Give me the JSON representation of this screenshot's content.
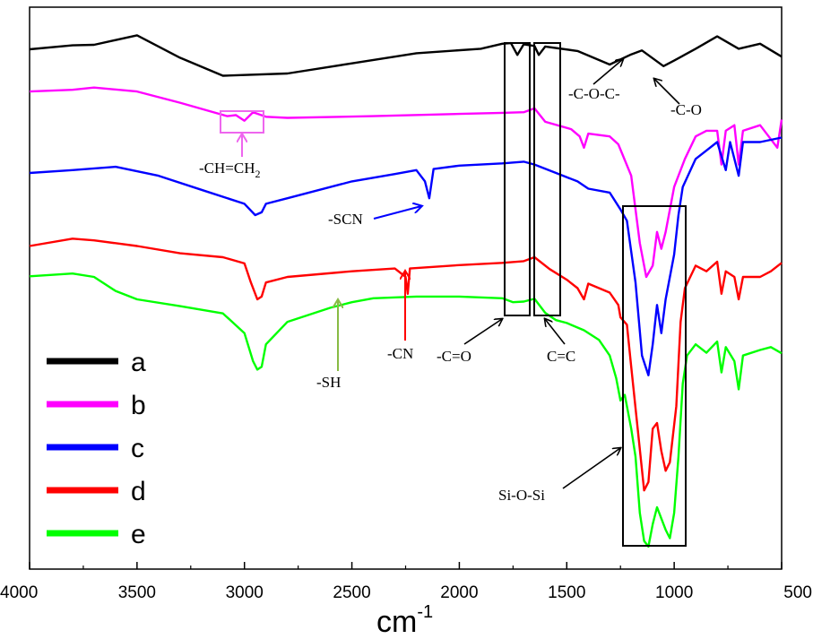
{
  "chart_data": {
    "type": "line",
    "title": "",
    "xlabel": "cm",
    "xlabel_superscript": "-1",
    "ylabel": "",
    "xlim": [
      4000,
      500
    ],
    "x_ticks": [
      "4000",
      "3500",
      "3000",
      "2500",
      "2000",
      "1500",
      "1000",
      "500"
    ],
    "x_tick_values": [
      4000,
      3500,
      3000,
      2500,
      2000,
      1500,
      1000,
      500
    ],
    "ylim": [
      0,
      100
    ],
    "series": [
      {
        "name": "a",
        "color": "#000000",
        "points": [
          [
            4000,
            92.5
          ],
          [
            3800,
            93.2
          ],
          [
            3700,
            93.3
          ],
          [
            3500,
            95
          ],
          [
            3300,
            91
          ],
          [
            3100,
            87.8
          ],
          [
            2800,
            88.2
          ],
          [
            2500,
            90
          ],
          [
            2200,
            91.8
          ],
          [
            1900,
            92.6
          ],
          [
            1800,
            93.5
          ],
          [
            1760,
            93.6
          ],
          [
            1730,
            91.5
          ],
          [
            1700,
            93.4
          ],
          [
            1650,
            93.1
          ],
          [
            1630,
            91.5
          ],
          [
            1600,
            93
          ],
          [
            1450,
            92.2
          ],
          [
            1300,
            89.8
          ],
          [
            1200,
            91.6
          ],
          [
            1150,
            92.3
          ],
          [
            1050,
            89.5
          ],
          [
            1000,
            90.5
          ],
          [
            900,
            92.6
          ],
          [
            800,
            94.8
          ],
          [
            700,
            92.6
          ],
          [
            600,
            93.5
          ],
          [
            500,
            91.2
          ]
        ]
      },
      {
        "name": "b",
        "color": "#ff00ff",
        "points": [
          [
            4000,
            85
          ],
          [
            3800,
            85.3
          ],
          [
            3700,
            85.7
          ],
          [
            3500,
            85
          ],
          [
            3300,
            83
          ],
          [
            3080,
            80.6
          ],
          [
            3040,
            80.8
          ],
          [
            3000,
            79.8
          ],
          [
            2960,
            81.3
          ],
          [
            2900,
            80.5
          ],
          [
            2800,
            80.3
          ],
          [
            2400,
            80.6
          ],
          [
            2000,
            81
          ],
          [
            1800,
            81.2
          ],
          [
            1700,
            81.3
          ],
          [
            1650,
            82
          ],
          [
            1600,
            79.6
          ],
          [
            1480,
            78.3
          ],
          [
            1440,
            77
          ],
          [
            1420,
            75
          ],
          [
            1400,
            77.5
          ],
          [
            1300,
            77
          ],
          [
            1260,
            75.6
          ],
          [
            1200,
            70
          ],
          [
            1160,
            58
          ],
          [
            1130,
            52
          ],
          [
            1100,
            54
          ],
          [
            1080,
            60
          ],
          [
            1060,
            57
          ],
          [
            1040,
            60
          ],
          [
            1000,
            68
          ],
          [
            950,
            73
          ],
          [
            900,
            77
          ],
          [
            850,
            78
          ],
          [
            800,
            78
          ],
          [
            780,
            72
          ],
          [
            760,
            78
          ],
          [
            720,
            79
          ],
          [
            700,
            72
          ],
          [
            680,
            78
          ],
          [
            600,
            79
          ],
          [
            520,
            75
          ],
          [
            500,
            80
          ]
        ]
      },
      {
        "name": "c",
        "color": "#0000ff",
        "points": [
          [
            4000,
            70.5
          ],
          [
            3800,
            71
          ],
          [
            3600,
            71.6
          ],
          [
            3400,
            70
          ],
          [
            3200,
            67.5
          ],
          [
            3000,
            65
          ],
          [
            2950,
            63
          ],
          [
            2920,
            63.5
          ],
          [
            2900,
            65
          ],
          [
            2800,
            66
          ],
          [
            2500,
            69
          ],
          [
            2300,
            70.3
          ],
          [
            2200,
            71
          ],
          [
            2160,
            69
          ],
          [
            2140,
            66
          ],
          [
            2120,
            71.2
          ],
          [
            2000,
            71.8
          ],
          [
            1800,
            72.2
          ],
          [
            1700,
            72.5
          ],
          [
            1650,
            72
          ],
          [
            1550,
            70.5
          ],
          [
            1450,
            69
          ],
          [
            1400,
            67.7
          ],
          [
            1300,
            67
          ],
          [
            1250,
            64
          ],
          [
            1220,
            62
          ],
          [
            1180,
            51
          ],
          [
            1150,
            38
          ],
          [
            1120,
            34.5
          ],
          [
            1100,
            40
          ],
          [
            1080,
            47
          ],
          [
            1060,
            42
          ],
          [
            1040,
            48
          ],
          [
            1000,
            56
          ],
          [
            980,
            63
          ],
          [
            960,
            68
          ],
          [
            900,
            73
          ],
          [
            850,
            74.5
          ],
          [
            800,
            76
          ],
          [
            760,
            71
          ],
          [
            740,
            76
          ],
          [
            700,
            70
          ],
          [
            680,
            76
          ],
          [
            600,
            76
          ],
          [
            500,
            76.8
          ]
        ]
      },
      {
        "name": "d",
        "color": "#ff0000",
        "points": [
          [
            4000,
            57.5
          ],
          [
            3800,
            58.8
          ],
          [
            3700,
            58.5
          ],
          [
            3500,
            57.5
          ],
          [
            3300,
            56.2
          ],
          [
            3100,
            55.5
          ],
          [
            3000,
            54.4
          ],
          [
            2970,
            51
          ],
          [
            2940,
            48
          ],
          [
            2920,
            48.5
          ],
          [
            2900,
            51
          ],
          [
            2800,
            52
          ],
          [
            2500,
            53
          ],
          [
            2300,
            53.5
          ],
          [
            2250,
            52
          ],
          [
            2240,
            49
          ],
          [
            2230,
            53.5
          ],
          [
            2000,
            54.1
          ],
          [
            1800,
            54.5
          ],
          [
            1700,
            54.8
          ],
          [
            1650,
            55.5
          ],
          [
            1580,
            53.4
          ],
          [
            1500,
            51.5
          ],
          [
            1450,
            50
          ],
          [
            1420,
            48
          ],
          [
            1400,
            50.8
          ],
          [
            1300,
            49.2
          ],
          [
            1260,
            47
          ],
          [
            1250,
            44.8
          ],
          [
            1220,
            43.5
          ],
          [
            1200,
            36
          ],
          [
            1170,
            25
          ],
          [
            1140,
            14
          ],
          [
            1120,
            15.5
          ],
          [
            1100,
            25
          ],
          [
            1080,
            26
          ],
          [
            1060,
            21
          ],
          [
            1040,
            17.5
          ],
          [
            1020,
            19
          ],
          [
            990,
            29
          ],
          [
            970,
            44
          ],
          [
            950,
            50
          ],
          [
            900,
            54
          ],
          [
            850,
            53
          ],
          [
            800,
            54.7
          ],
          [
            780,
            49
          ],
          [
            760,
            53
          ],
          [
            720,
            52
          ],
          [
            700,
            48
          ],
          [
            680,
            52
          ],
          [
            600,
            52
          ],
          [
            550,
            53
          ],
          [
            500,
            54.5
          ]
        ]
      },
      {
        "name": "e",
        "color": "#00ff00",
        "points": [
          [
            4000,
            52.1
          ],
          [
            3800,
            52.6
          ],
          [
            3700,
            52
          ],
          [
            3600,
            49.5
          ],
          [
            3500,
            48
          ],
          [
            3300,
            46.8
          ],
          [
            3100,
            45.5
          ],
          [
            3000,
            42
          ],
          [
            2960,
            37
          ],
          [
            2940,
            35.5
          ],
          [
            2920,
            36
          ],
          [
            2900,
            40
          ],
          [
            2800,
            44
          ],
          [
            2600,
            46.5
          ],
          [
            2500,
            47.5
          ],
          [
            2400,
            48.2
          ],
          [
            2200,
            48.5
          ],
          [
            2000,
            48.5
          ],
          [
            1800,
            48.2
          ],
          [
            1750,
            47.5
          ],
          [
            1700,
            47.6
          ],
          [
            1650,
            48.1
          ],
          [
            1600,
            45.6
          ],
          [
            1550,
            44.3
          ],
          [
            1500,
            43.8
          ],
          [
            1420,
            42.5
          ],
          [
            1350,
            40.8
          ],
          [
            1300,
            38
          ],
          [
            1270,
            34
          ],
          [
            1250,
            30
          ],
          [
            1230,
            31
          ],
          [
            1200,
            25
          ],
          [
            1180,
            20
          ],
          [
            1160,
            10
          ],
          [
            1140,
            5
          ],
          [
            1120,
            4
          ],
          [
            1100,
            8
          ],
          [
            1080,
            11
          ],
          [
            1060,
            9
          ],
          [
            1040,
            7
          ],
          [
            1020,
            5.5
          ],
          [
            1000,
            10
          ],
          [
            980,
            20
          ],
          [
            960,
            33
          ],
          [
            940,
            38
          ],
          [
            900,
            40
          ],
          [
            850,
            38.5
          ],
          [
            800,
            40.5
          ],
          [
            780,
            35
          ],
          [
            760,
            39.5
          ],
          [
            720,
            37
          ],
          [
            700,
            32
          ],
          [
            680,
            38
          ],
          [
            600,
            39
          ],
          [
            550,
            39.5
          ],
          [
            500,
            38.4
          ]
        ]
      }
    ],
    "legend": {
      "position": "bottom-left",
      "entries": [
        {
          "label": "a",
          "color": "#000000"
        },
        {
          "label": "b",
          "color": "#ff00ff"
        },
        {
          "label": "c",
          "color": "#0000ff"
        },
        {
          "label": "d",
          "color": "#ff0000"
        },
        {
          "label": "e",
          "color": "#00ff00"
        }
      ]
    },
    "annotations": [
      {
        "text": "-CH=CH",
        "subscript": "2",
        "color": "#000000",
        "series": "b",
        "wavenumber": 3000
      },
      {
        "text": "-SCN",
        "color": "#000000",
        "series": "c",
        "wavenumber": 2140
      },
      {
        "text": "-CN",
        "color": "#000000",
        "series": "d",
        "wavenumber": 2240
      },
      {
        "text": "-SH",
        "color": "#000000",
        "series": "e",
        "wavenumber": 2560
      },
      {
        "text": "-C=O",
        "color": "#000000",
        "wavenumber": 1730
      },
      {
        "text": "C=C",
        "color": "#000000",
        "wavenumber": 1630
      },
      {
        "text": "-C-O-C-",
        "color": "#000000",
        "series": "a",
        "wavenumber": 1200
      },
      {
        "text": "-C-O",
        "color": "#000000",
        "series": "a",
        "wavenumber": 1050
      },
      {
        "text": "Si-O-Si",
        "color": "#000000",
        "wavenumber": 1100
      }
    ]
  }
}
